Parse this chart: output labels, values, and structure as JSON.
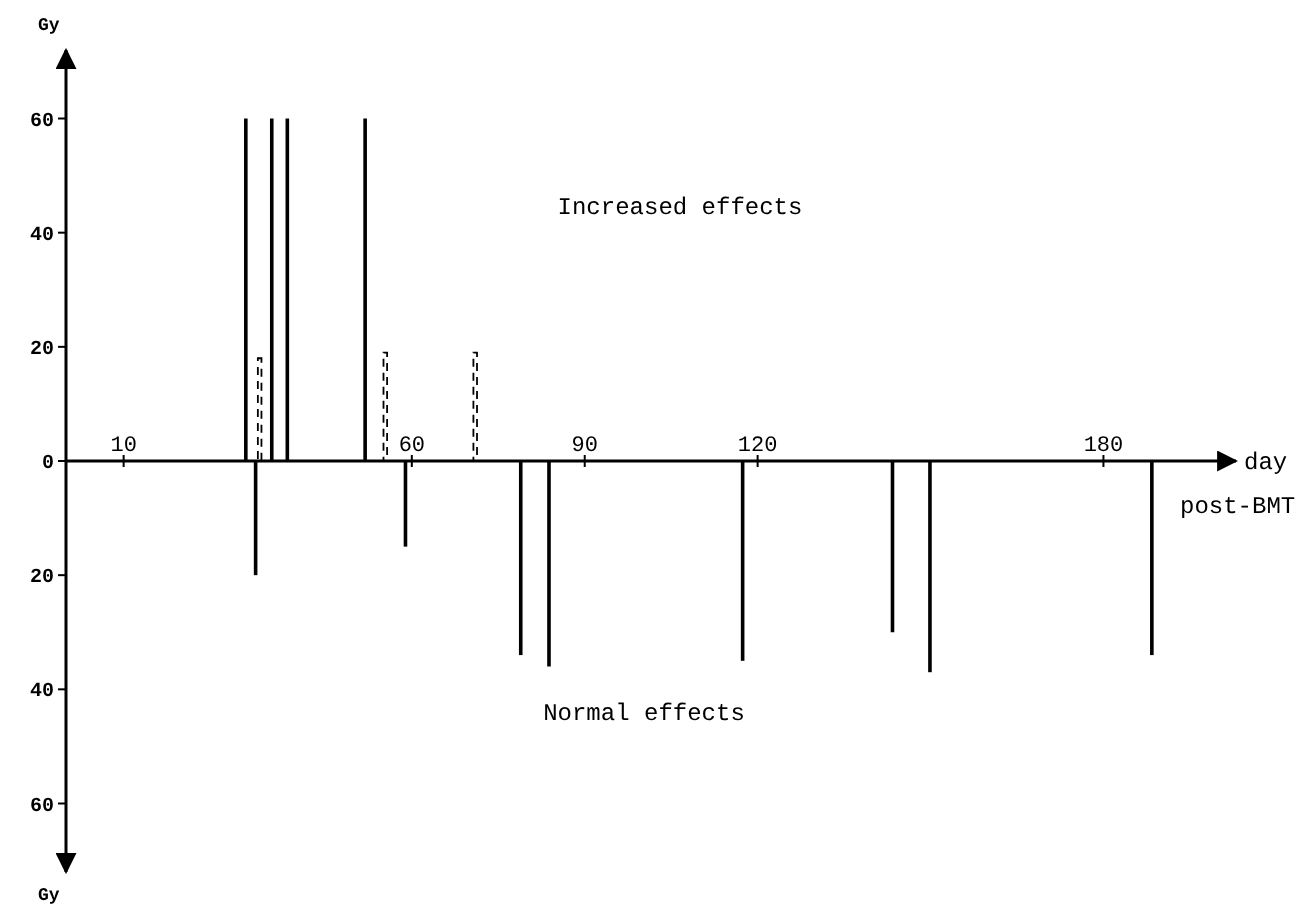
{
  "chart_data": {
    "type": "bar",
    "xlabel": "day post-BMT",
    "ylabel": "Gy",
    "annotations": [
      "Increased effects",
      "Normal effects"
    ],
    "xlim": [
      0,
      203
    ],
    "xticks": [
      10,
      60,
      90,
      120,
      180
    ],
    "ylim": [
      -72,
      72
    ],
    "yticks": [
      {
        "value": -60,
        "label": "60"
      },
      {
        "value": -40,
        "label": "40"
      },
      {
        "value": -20,
        "label": "20"
      },
      0,
      20,
      40,
      60
    ],
    "series": [
      {
        "color": "#000000",
        "line_style": "solid",
        "x": [
          31.2,
          32.9,
          35.7,
          38.4,
          51.9,
          58.9,
          78.9,
          83.8,
          117.4,
          143.4,
          149.9,
          188.4
        ],
        "values": [
          60,
          -20,
          60,
          60,
          60,
          -15,
          -34,
          -36,
          -35,
          -30,
          -37,
          -34
        ]
      },
      {
        "color": "#000000",
        "line_style": "dashed",
        "x": [
          33.6,
          55.4,
          71.0
        ],
        "values": [
          18,
          19,
          19
        ]
      }
    ]
  }
}
